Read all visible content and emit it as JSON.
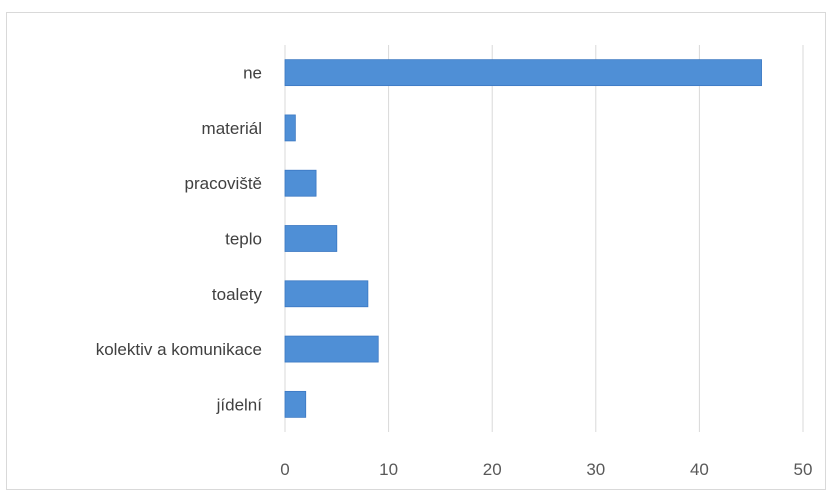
{
  "chart_data": {
    "type": "bar",
    "orientation": "horizontal",
    "categories": [
      "ne",
      "materiál",
      "pracoviště",
      "teplo",
      "toalety",
      "kolektiv a komunikace",
      "jídelní"
    ],
    "values": [
      46,
      1,
      3,
      5,
      8,
      9,
      2
    ],
    "xticks": [
      0,
      10,
      20,
      30,
      40,
      50
    ],
    "xlim": [
      0,
      50
    ],
    "grid": "vertical",
    "legend": "none",
    "colors": {
      "bar": "#4f8fd6",
      "bar_edge": "#3b78c2",
      "grid": "#d9d9d9",
      "label": "#404040",
      "tick": "#595959"
    }
  }
}
